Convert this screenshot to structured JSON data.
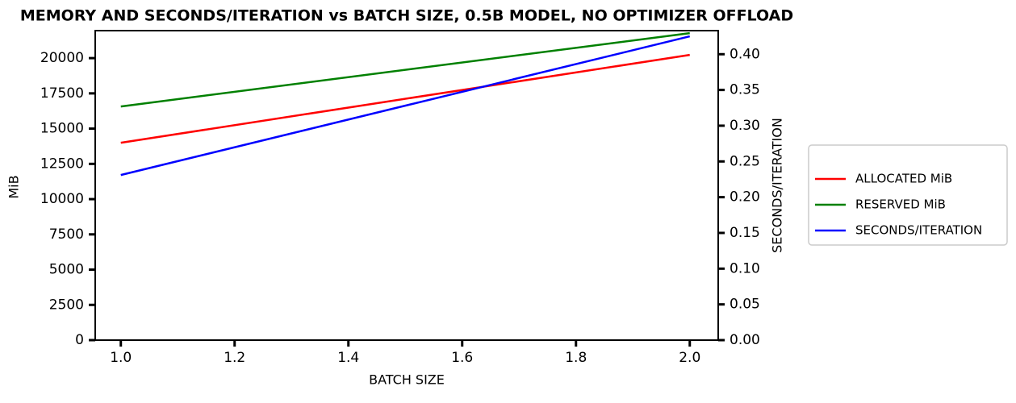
{
  "chart_data": {
    "type": "line",
    "title": "MEMORY AND SECONDS/ITERATION vs BATCH SIZE, 0.5B MODEL, NO OPTIMIZER OFFLOAD",
    "x_label": "BATCH SIZE",
    "y_label": "MiB",
    "y2_label": "SECONDS/ITERATION",
    "x": [
      1,
      2
    ],
    "series": [
      {
        "name": "ALLOCATED MiB",
        "color": "#ff0000",
        "values": [
          14000,
          20230
        ]
      },
      {
        "name": "RESERVED MiB",
        "color": "#008000",
        "values": [
          16570,
          21770
        ]
      },
      {
        "name": "SECONDS/ITERATION",
        "color": "#0000ff",
        "values": [
          0.231,
          0.425
        ],
        "axis": "y2"
      }
    ],
    "xlim": [
      0.955,
      2.05
    ],
    "xticks": [
      {
        "value": 1,
        "label": "1.0"
      },
      1.2,
      1.4,
      1.6,
      1.8,
      {
        "value": 2,
        "label": "2.0"
      }
    ],
    "ylim": [
      0,
      21950
    ],
    "yticks": [
      0,
      2500,
      5000,
      7500,
      10000,
      12500,
      15000,
      17500,
      20000
    ],
    "y2lim": [
      0,
      0.433
    ],
    "y2ticks": [
      {
        "value": 0,
        "label": "0.00"
      },
      0.05,
      {
        "value": 0.1,
        "label": "0.10"
      },
      0.15,
      {
        "value": 0.2,
        "label": "0.20"
      },
      0.25,
      {
        "value": 0.3,
        "label": "0.30"
      },
      0.35,
      {
        "value": 0.4,
        "label": "0.40"
      }
    ],
    "legend": "outside-right"
  }
}
